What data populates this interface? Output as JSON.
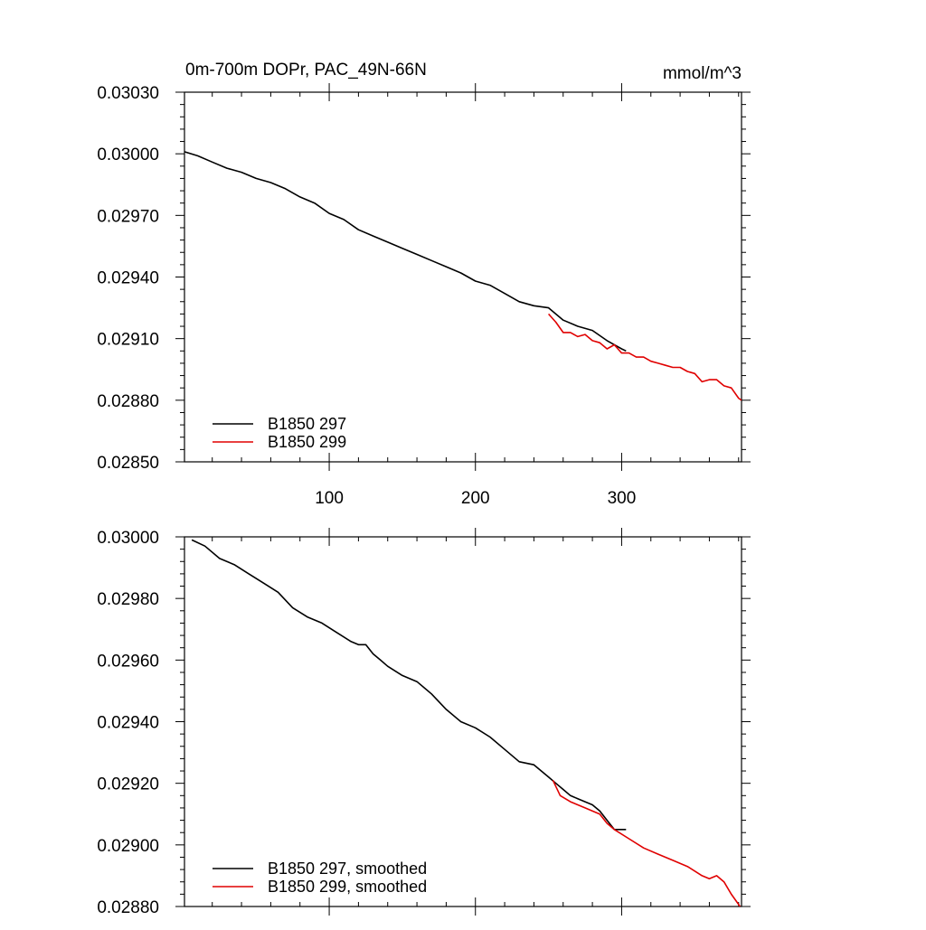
{
  "chart_data": [
    {
      "type": "line",
      "title_left": "0m-700m DOPr, PAC_49N-66N",
      "title_right": "mmol/m^3",
      "xlabel": "",
      "ylabel": "",
      "xlim": [
        1,
        382
      ],
      "ylim": [
        0.0285,
        0.0303
      ],
      "yticks": [
        "0.02850",
        "0.02880",
        "0.02910",
        "0.02940",
        "0.02970",
        "0.03000",
        "0.03030"
      ],
      "ytick_values": [
        0.0285,
        0.0288,
        0.0291,
        0.0294,
        0.0297,
        0.03,
        0.0303
      ],
      "xticks": [
        "100",
        "200",
        "300"
      ],
      "xtick_values": [
        100,
        200,
        300
      ],
      "legend_position": "bottom-left",
      "series": [
        {
          "name": "B1850 297",
          "color": "#000000",
          "x": [
            1,
            10,
            20,
            30,
            40,
            50,
            60,
            70,
            80,
            90,
            100,
            110,
            120,
            130,
            140,
            150,
            160,
            170,
            180,
            190,
            200,
            210,
            220,
            230,
            240,
            250,
            260,
            270,
            280,
            290,
            300,
            303
          ],
          "y": [
            0.03001,
            0.02999,
            0.02996,
            0.02993,
            0.02991,
            0.02988,
            0.02986,
            0.02983,
            0.02979,
            0.02976,
            0.02971,
            0.02968,
            0.02963,
            0.0296,
            0.02957,
            0.02954,
            0.02951,
            0.02948,
            0.02945,
            0.02942,
            0.02938,
            0.02936,
            0.02932,
            0.02928,
            0.02926,
            0.02925,
            0.02919,
            0.02916,
            0.02914,
            0.02909,
            0.02905,
            0.02904
          ]
        },
        {
          "name": "B1850 299",
          "color": "#e00000",
          "x": [
            250,
            255,
            260,
            265,
            270,
            275,
            280,
            285,
            290,
            295,
            300,
            305,
            310,
            315,
            320,
            325,
            330,
            335,
            340,
            345,
            350,
            355,
            360,
            365,
            370,
            375,
            380,
            382
          ],
          "y": [
            0.02922,
            0.02918,
            0.02913,
            0.02913,
            0.02911,
            0.02912,
            0.02909,
            0.02908,
            0.02905,
            0.02907,
            0.02903,
            0.02903,
            0.02901,
            0.02901,
            0.02899,
            0.02898,
            0.02897,
            0.02896,
            0.02896,
            0.02894,
            0.02893,
            0.02889,
            0.0289,
            0.0289,
            0.02887,
            0.02886,
            0.02881,
            0.0288
          ]
        }
      ]
    },
    {
      "type": "line",
      "xlabel": "",
      "ylabel": "",
      "xlim": [
        1,
        382
      ],
      "ylim": [
        0.0288,
        0.03
      ],
      "yticks": [
        "0.02880",
        "0.02900",
        "0.02920",
        "0.02940",
        "0.02960",
        "0.02980",
        "0.03000"
      ],
      "ytick_values": [
        0.0288,
        0.029,
        0.0292,
        0.0294,
        0.0296,
        0.0298,
        0.03
      ],
      "xticks": [],
      "xtick_values": [
        100,
        200,
        300
      ],
      "legend_position": "bottom-left",
      "series": [
        {
          "name": "B1850 297, smoothed",
          "color": "#000000",
          "x": [
            6,
            15,
            25,
            35,
            45,
            55,
            65,
            75,
            85,
            95,
            105,
            115,
            120,
            125,
            130,
            135,
            140,
            150,
            160,
            170,
            180,
            190,
            200,
            210,
            220,
            230,
            240,
            250,
            255,
            260,
            265,
            270,
            275,
            280,
            285,
            290,
            295,
            303
          ],
          "y": [
            0.02999,
            0.02997,
            0.02993,
            0.02991,
            0.02988,
            0.02985,
            0.02982,
            0.02977,
            0.02974,
            0.02972,
            0.02969,
            0.02966,
            0.02965,
            0.02965,
            0.02962,
            0.0296,
            0.02958,
            0.02955,
            0.02953,
            0.02949,
            0.02944,
            0.0294,
            0.02938,
            0.02935,
            0.02931,
            0.02927,
            0.02926,
            0.02922,
            0.0292,
            0.02918,
            0.02916,
            0.02915,
            0.02914,
            0.02913,
            0.02911,
            0.02908,
            0.02905,
            0.02905
          ]
        },
        {
          "name": "B1850 299, smoothed",
          "color": "#e00000",
          "x": [
            253,
            258,
            265,
            275,
            285,
            290,
            295,
            305,
            315,
            325,
            335,
            345,
            355,
            360,
            365,
            370,
            375,
            381
          ],
          "y": [
            0.02921,
            0.02916,
            0.02914,
            0.02912,
            0.0291,
            0.02907,
            0.02905,
            0.02902,
            0.02899,
            0.02897,
            0.02895,
            0.02893,
            0.0289,
            0.02889,
            0.0289,
            0.02888,
            0.02884,
            0.0288
          ]
        }
      ]
    }
  ]
}
